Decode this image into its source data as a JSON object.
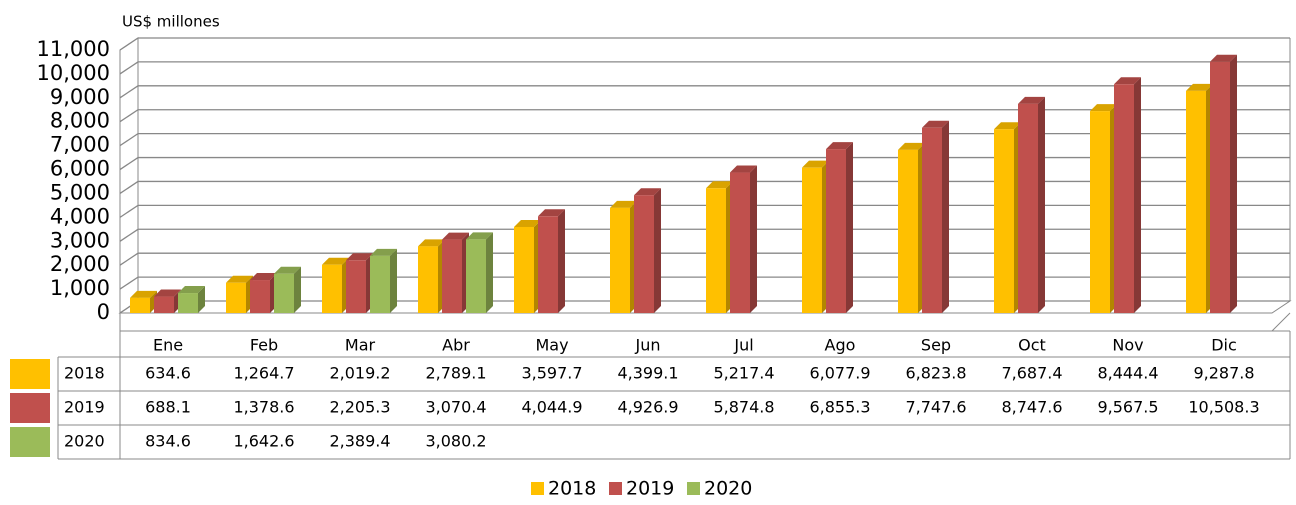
{
  "chart_data": {
    "type": "bar3d",
    "ylabel": "US$ millones",
    "categories": [
      "Ene",
      "Feb",
      "Mar",
      "Abr",
      "May",
      "Jun",
      "Jul",
      "Ago",
      "Sep",
      "Oct",
      "Nov",
      "Dic"
    ],
    "ylim": [
      0,
      11000
    ],
    "yticks": [
      0,
      {
        "value": 1000,
        "label": "1,000"
      },
      {
        "value": 2000,
        "label": "2,000"
      },
      {
        "value": 3000,
        "label": "3,000"
      },
      {
        "value": 4000,
        "label": "4,000"
      },
      {
        "value": 5000,
        "label": "5,000"
      },
      {
        "value": 6000,
        "label": "6,000"
      },
      {
        "value": 7000,
        "label": "7,000"
      },
      {
        "value": 8000,
        "label": "8,000"
      },
      {
        "value": 9000,
        "label": "9,000"
      },
      {
        "value": 10000,
        "label": "10,000"
      },
      {
        "value": 11000,
        "label": "11,000"
      }
    ],
    "grid": true,
    "legend": "bottom",
    "series": [
      {
        "name": "2018",
        "color": "#ffc000",
        "values": [
          634.6,
          1264.7,
          2019.2,
          2789.1,
          3597.7,
          4399.1,
          5217.4,
          6077.9,
          6823.8,
          7687.4,
          8444.4,
          9287.8
        ],
        "value_labels": [
          "634.6",
          "1,264.7",
          "2,019.2",
          "2,789.1",
          "3,597.7",
          "4,399.1",
          "5,217.4",
          "6,077.9",
          "6,823.8",
          "7,687.4",
          "8,444.4",
          "9,287.8"
        ]
      },
      {
        "name": "2019",
        "color": "#c0504d",
        "values": [
          688.1,
          1378.6,
          2205.3,
          3070.4,
          4044.9,
          4926.9,
          5874.8,
          6855.3,
          7747.6,
          8747.6,
          9567.5,
          10508.3
        ],
        "value_labels": [
          "688.1",
          "1,378.6",
          "2,205.3",
          "3,070.4",
          "4,044.9",
          "4,926.9",
          "5,874.8",
          "6,855.3",
          "7,747.6",
          "8,747.6",
          "9,567.5",
          "10,508.3"
        ]
      },
      {
        "name": "2020",
        "color": "#9bbb59",
        "values": [
          834.6,
          1642.6,
          2389.4,
          3080.2,
          null,
          null,
          null,
          null,
          null,
          null,
          null,
          null
        ],
        "value_labels": [
          "834.6",
          "1,642.6",
          "2,389.4",
          "3,080.2",
          null,
          null,
          null,
          null,
          null,
          null,
          null,
          null
        ]
      }
    ]
  }
}
